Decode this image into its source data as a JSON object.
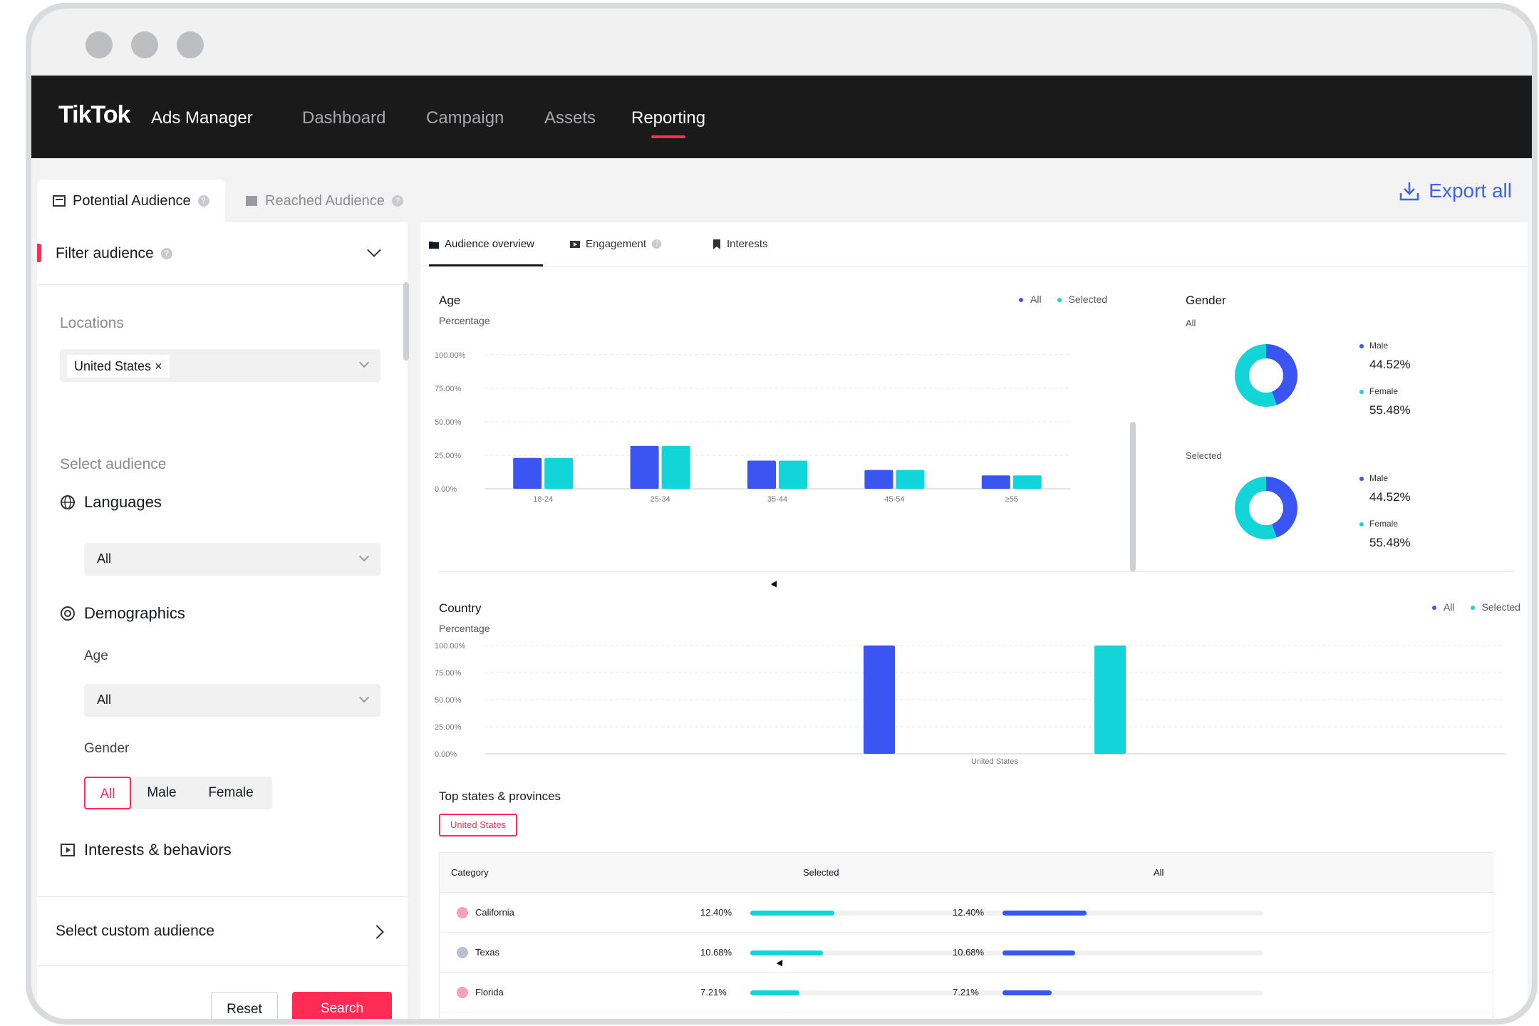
{
  "nav": {
    "brand": "TikTok",
    "brand_sub": "Ads Manager",
    "links": [
      "Dashboard",
      "Campaign",
      "Assets",
      "Reporting"
    ],
    "active": "Reporting"
  },
  "tabs": {
    "potential": "Potential Audience",
    "reached": "Reached Audience"
  },
  "export_label": "Export all",
  "filter": {
    "title": "Filter audience",
    "locations_label": "Locations",
    "location_tag": "United States",
    "select_audience_label": "Select audience",
    "languages_label": "Languages",
    "languages_value": "All",
    "demographics_label": "Demographics",
    "age_label": "Age",
    "age_value": "All",
    "gender_label": "Gender",
    "gender_options": [
      "All",
      "Male",
      "Female"
    ],
    "interests_label": "Interests & behaviors",
    "custom_label": "Select custom audience",
    "reset_label": "Reset",
    "search_label": "Search"
  },
  "subtabs": [
    "Audience overview",
    "Engagement",
    "Interests"
  ],
  "age_chart": {
    "title": "Age",
    "ylabel": "Percentage",
    "legend_all": "All",
    "legend_selected": "Selected",
    "yticks": [
      "100.00%",
      "75.00%",
      "50.00%",
      "25.00%",
      "0.00%"
    ]
  },
  "gender": {
    "title": "Gender",
    "all_label": "All",
    "selected_label": "Selected",
    "male_label": "Male",
    "female_label": "Female",
    "male_all": "44.52%",
    "female_all": "55.48%",
    "male_selected": "44.52%",
    "female_selected": "55.48%"
  },
  "country_chart": {
    "title": "Country",
    "ylabel": "Percentage",
    "legend_all": "All",
    "legend_selected": "Selected",
    "yticks": [
      "100.00%",
      "75.00%",
      "50.00%",
      "25.00%",
      "0.00%"
    ]
  },
  "top_states": {
    "title": "Top states & provinces",
    "pill": "United States",
    "headers": [
      "Category",
      "Selected",
      "All"
    ],
    "rows": [
      {
        "name": "California",
        "selected": "12.40%",
        "all": "12.40%",
        "value": 12.4
      },
      {
        "name": "Texas",
        "selected": "10.68%",
        "all": "10.68%",
        "value": 10.68
      },
      {
        "name": "Florida",
        "selected": "7.21%",
        "all": "7.21%",
        "value": 7.21
      }
    ]
  },
  "colors": {
    "accent": "#fe2c55",
    "all": "#3a55f2",
    "selected": "#12d5d9"
  },
  "chart_data": [
    {
      "type": "bar",
      "title": "Age",
      "ylabel": "Percentage",
      "categories": [
        "18-24",
        "25-34",
        "35-44",
        "45-54",
        "≥55"
      ],
      "series": [
        {
          "name": "All",
          "values": [
            23,
            32,
            21,
            14,
            10
          ]
        },
        {
          "name": "Selected",
          "values": [
            23,
            32,
            21,
            14,
            10
          ]
        }
      ],
      "ylim": [
        0,
        100
      ]
    },
    {
      "type": "pie",
      "title": "Gender",
      "series": [
        {
          "name": "All",
          "values": [
            44.52,
            55.48
          ]
        },
        {
          "name": "Selected",
          "values": [
            44.52,
            55.48
          ]
        }
      ],
      "categories": [
        "Male",
        "Female"
      ]
    },
    {
      "type": "bar",
      "title": "Country",
      "ylabel": "Percentage",
      "categories": [
        "United States"
      ],
      "series": [
        {
          "name": "All",
          "values": [
            100
          ]
        },
        {
          "name": "Selected",
          "values": [
            100
          ]
        }
      ],
      "ylim": [
        0,
        100
      ]
    }
  ]
}
